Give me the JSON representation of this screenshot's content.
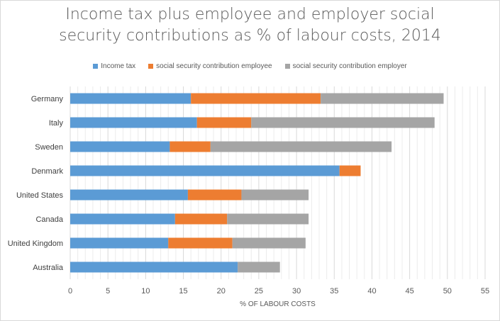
{
  "chart_data": {
    "type": "bar",
    "orientation": "horizontal",
    "stacked": true,
    "title_line1": "Income tax plus employee and employer social",
    "title_line2": "security contributions as % of labour costs, 2014",
    "xlabel": "% OF LABOUR COSTS",
    "ylabel": "",
    "xlim": [
      0,
      55
    ],
    "xticks": [
      "0",
      "5",
      "10",
      "15",
      "20",
      "25",
      "30",
      "35",
      "40",
      "45",
      "50",
      "55"
    ],
    "grid": "vertical major and minor",
    "legend_position": "top",
    "categories": [
      "Germany",
      "Italy",
      "Sweden",
      "Denmark",
      "United States",
      "Canada",
      "United Kingdom",
      "Australia"
    ],
    "series": [
      {
        "name": "Income tax",
        "color": "#5b9bd5",
        "values": [
          16.0,
          16.8,
          13.2,
          35.7,
          15.6,
          13.9,
          13.0,
          22.2
        ]
      },
      {
        "name": "social security contribution employee",
        "color": "#ed7d31",
        "values": [
          17.2,
          7.2,
          5.4,
          2.8,
          7.1,
          6.9,
          8.5,
          0
        ]
      },
      {
        "name": "social security contribution employer",
        "color": "#a5a5a5",
        "values": [
          16.3,
          24.3,
          24.0,
          0,
          8.9,
          10.8,
          9.7,
          5.6
        ]
      }
    ]
  }
}
